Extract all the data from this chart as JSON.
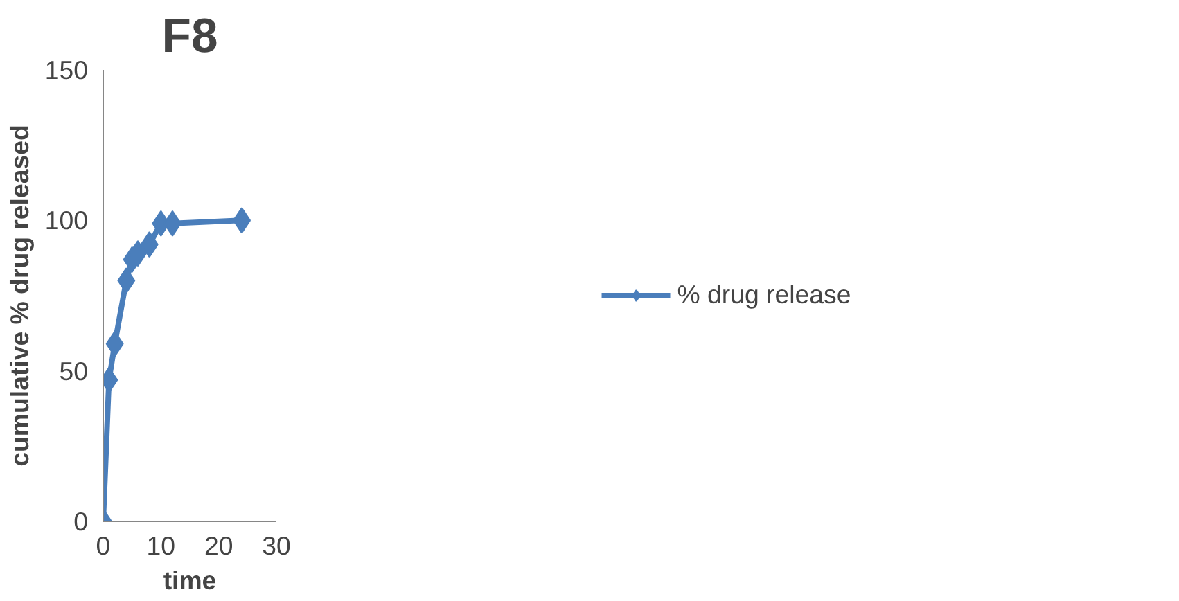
{
  "chart_data": {
    "type": "line",
    "title": "F8",
    "xlabel": "time",
    "ylabel": "cumulative % drug released",
    "x": [
      0,
      1,
      2,
      4,
      5,
      6,
      8,
      10,
      12,
      24
    ],
    "series": [
      {
        "name": "% drug release",
        "color": "#4a7ebb",
        "values": [
          0,
          47,
          59,
          80,
          87,
          89,
          92,
          99,
          99,
          100
        ]
      }
    ],
    "xlim": [
      0,
      30
    ],
    "xticks": [
      0,
      10,
      20,
      30
    ],
    "ylim": [
      0,
      150
    ],
    "yticks": [
      0,
      50,
      100,
      150
    ],
    "grid": false,
    "legend": "right",
    "marker": "diamond",
    "line_style": "solid"
  }
}
